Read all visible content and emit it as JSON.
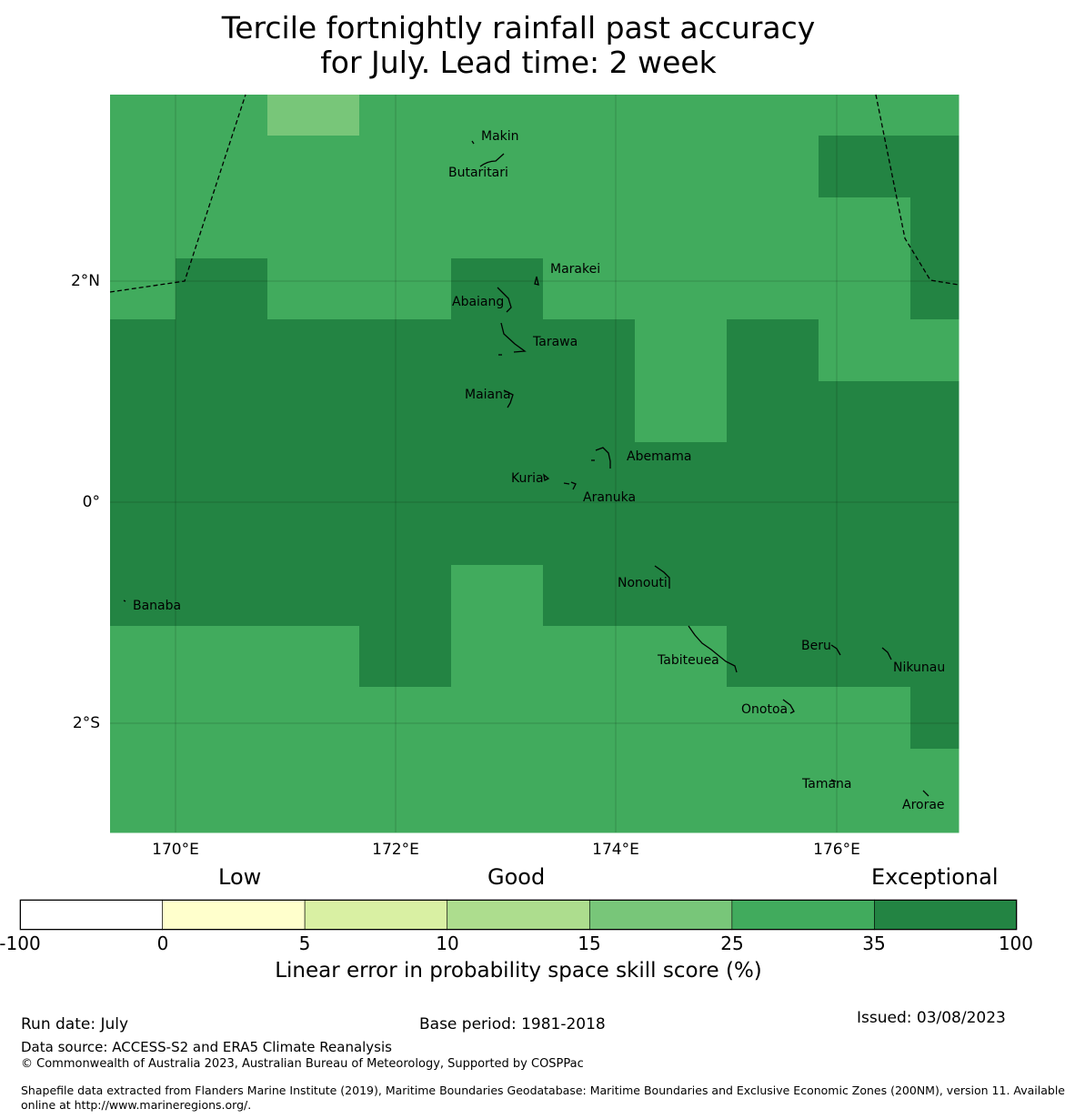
{
  "title": {
    "line1": "Tercile fortnightly rainfall past accuracy",
    "line2": "for July. Lead time: 2 week"
  },
  "map": {
    "lat_ticks": [
      "2°N",
      "0°",
      "2°S"
    ],
    "lon_ticks": [
      "170°E",
      "172°E",
      "174°E",
      "176°E"
    ],
    "places": [
      "Makin",
      "Butaritari",
      "Marakei",
      "Abaiang",
      "Tarawa",
      "Maiana",
      "Abemama",
      "Kuria",
      "Aranuka",
      "Nonouti",
      "Banaba",
      "Tabiteuea",
      "Beru",
      "Nikunau",
      "Onotoa",
      "Tamana",
      "Arorae"
    ],
    "colors": {
      "exceptional": "#238443",
      "good_high": "#41ab5d",
      "good": "#78c679"
    }
  },
  "colorbar": {
    "category_labels": [
      "Low",
      "Good",
      "Exceptional"
    ],
    "ticks": [
      "-100",
      "0",
      "5",
      "10",
      "15",
      "25",
      "35",
      "100"
    ],
    "colors": [
      "#ffffff",
      "#ffffcc",
      "#d9f0a3",
      "#addd8e",
      "#78c679",
      "#41ab5d",
      "#238443"
    ],
    "label": "Linear error in probability space skill score (%)"
  },
  "footer": {
    "run_date": "Run date: July",
    "base_period": "Base period: 1981-2018",
    "issued": "Issued: 03/08/2023",
    "data_source": "Data source: ACCESS-S2 and ERA5 Climate Reanalysis",
    "copyright": "© Commonwealth of Australia 2023, Australian Bureau of Meteorology, Supported by COSPPac",
    "shapefile_line1": "Shapefile data extracted from Flanders Marine Institute (2019), Maritime Boundaries Geodatabase: Maritime Boundaries and Exclusive Economic Zones (200NM), version 11. Available",
    "shapefile_line2": "online at http://www.marineregions.org/."
  }
}
